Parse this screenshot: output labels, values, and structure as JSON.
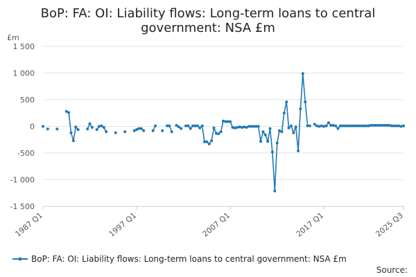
{
  "chart_data": {
    "type": "line",
    "title": [
      "BoP: FA: OI: Liability flows: Long-term loans to central",
      "government: NSA £m"
    ],
    "unit_label": "£m",
    "ylim": [
      -1500,
      1500
    ],
    "y_ticks": [
      1500,
      1000,
      500,
      0,
      -500,
      -1000,
      -1500
    ],
    "y_tick_labels": [
      "1 500",
      "1 000",
      "500",
      "0",
      "-500",
      "-1 000",
      "-1 500"
    ],
    "x_tick_labels": [
      {
        "label": "1987 Q1",
        "year": 1987
      },
      {
        "label": "1997 Q1",
        "year": 1997
      },
      {
        "label": "2007 Q1",
        "year": 2007
      },
      {
        "label": "2017 Q1",
        "year": 2017
      },
      {
        "label": "2025 Q3",
        "year": 2025.5
      }
    ],
    "x_range": [
      1987,
      2025.5
    ],
    "grid": true,
    "legend_position": "bottom",
    "series": [
      {
        "name": "BoP: FA: OI: Liability flows: Long-term loans to central government: NSA £m",
        "color": "#1f78b4",
        "points": [
          [
            1987.0,
            0
          ],
          [
            1987.5,
            -50
          ],
          [
            1988.5,
            -50
          ],
          [
            1989.5,
            280
          ],
          [
            1989.75,
            260
          ],
          [
            1990.0,
            -120
          ],
          [
            1990.25,
            -270
          ],
          [
            1990.5,
            -10
          ],
          [
            1990.75,
            -60
          ],
          [
            1991.75,
            -50
          ],
          [
            1992.0,
            50
          ],
          [
            1992.25,
            -20
          ],
          [
            1992.75,
            -60
          ],
          [
            1993.0,
            0
          ],
          [
            1993.25,
            10
          ],
          [
            1993.5,
            -20
          ],
          [
            1993.75,
            -100
          ],
          [
            1994.75,
            -120
          ],
          [
            1995.75,
            -100
          ],
          [
            1996.75,
            -80
          ],
          [
            1997.0,
            -60
          ],
          [
            1997.25,
            -40
          ],
          [
            1997.5,
            -40
          ],
          [
            1997.75,
            -80
          ],
          [
            1998.75,
            -80
          ],
          [
            1999.0,
            10
          ],
          [
            1999.75,
            -80
          ],
          [
            2000.25,
            10
          ],
          [
            2000.5,
            10
          ],
          [
            2000.75,
            -100
          ],
          [
            2001.25,
            20
          ],
          [
            2001.5,
            -10
          ],
          [
            2001.75,
            -40
          ],
          [
            2002.25,
            10
          ],
          [
            2002.5,
            10
          ],
          [
            2002.75,
            -40
          ],
          [
            2003.0,
            10
          ],
          [
            2003.25,
            10
          ],
          [
            2003.5,
            10
          ],
          [
            2003.75,
            -30
          ],
          [
            2004.0,
            10
          ],
          [
            2004.25,
            -290
          ],
          [
            2004.5,
            -290
          ],
          [
            2004.75,
            -330
          ],
          [
            2005.0,
            -270
          ],
          [
            2005.25,
            -30
          ],
          [
            2005.5,
            -130
          ],
          [
            2005.75,
            -140
          ],
          [
            2006.0,
            -100
          ],
          [
            2006.25,
            100
          ],
          [
            2006.5,
            90
          ],
          [
            2006.75,
            90
          ],
          [
            2007.0,
            90
          ],
          [
            2007.25,
            -20
          ],
          [
            2007.5,
            -30
          ],
          [
            2007.75,
            -20
          ],
          [
            2008.0,
            -10
          ],
          [
            2008.25,
            -20
          ],
          [
            2008.5,
            -10
          ],
          [
            2008.75,
            -20
          ],
          [
            2009.0,
            0
          ],
          [
            2009.25,
            0
          ],
          [
            2009.5,
            0
          ],
          [
            2009.75,
            0
          ],
          [
            2010.0,
            0
          ],
          [
            2010.25,
            -280
          ],
          [
            2010.5,
            -100
          ],
          [
            2010.75,
            -160
          ],
          [
            2011.0,
            -280
          ],
          [
            2011.25,
            -40
          ],
          [
            2011.5,
            -480
          ],
          [
            2011.75,
            -1210
          ],
          [
            2012.0,
            -310
          ],
          [
            2012.25,
            -80
          ],
          [
            2012.5,
            -100
          ],
          [
            2012.75,
            250
          ],
          [
            2013.0,
            460
          ],
          [
            2013.25,
            -30
          ],
          [
            2013.5,
            10
          ],
          [
            2013.75,
            -120
          ],
          [
            2014.0,
            -10
          ],
          [
            2014.25,
            -460
          ],
          [
            2014.5,
            330
          ],
          [
            2014.75,
            990
          ],
          [
            2015.0,
            460
          ],
          [
            2015.25,
            10
          ],
          [
            2015.5,
            10
          ],
          [
            2016.0,
            40
          ],
          [
            2016.25,
            10
          ],
          [
            2016.5,
            0
          ],
          [
            2016.75,
            10
          ],
          [
            2017.0,
            0
          ],
          [
            2017.25,
            10
          ],
          [
            2017.5,
            70
          ],
          [
            2017.75,
            20
          ],
          [
            2018.0,
            20
          ],
          [
            2018.25,
            10
          ],
          [
            2018.5,
            -40
          ],
          [
            2018.75,
            10
          ],
          [
            2019.0,
            10
          ],
          [
            2019.25,
            10
          ],
          [
            2019.5,
            10
          ],
          [
            2019.75,
            10
          ],
          [
            2020.0,
            10
          ],
          [
            2020.25,
            10
          ],
          [
            2020.5,
            10
          ],
          [
            2020.75,
            10
          ],
          [
            2021.0,
            10
          ],
          [
            2021.25,
            10
          ],
          [
            2021.5,
            10
          ],
          [
            2021.75,
            10
          ],
          [
            2022.0,
            20
          ],
          [
            2022.25,
            20
          ],
          [
            2022.5,
            20
          ],
          [
            2022.75,
            20
          ],
          [
            2023.0,
            20
          ],
          [
            2023.25,
            20
          ],
          [
            2023.5,
            20
          ],
          [
            2023.75,
            20
          ],
          [
            2024.0,
            20
          ],
          [
            2024.25,
            10
          ],
          [
            2024.5,
            10
          ],
          [
            2024.75,
            10
          ],
          [
            2025.0,
            10
          ],
          [
            2025.25,
            0
          ],
          [
            2025.5,
            10
          ]
        ]
      }
    ]
  },
  "source_label": "Source:"
}
